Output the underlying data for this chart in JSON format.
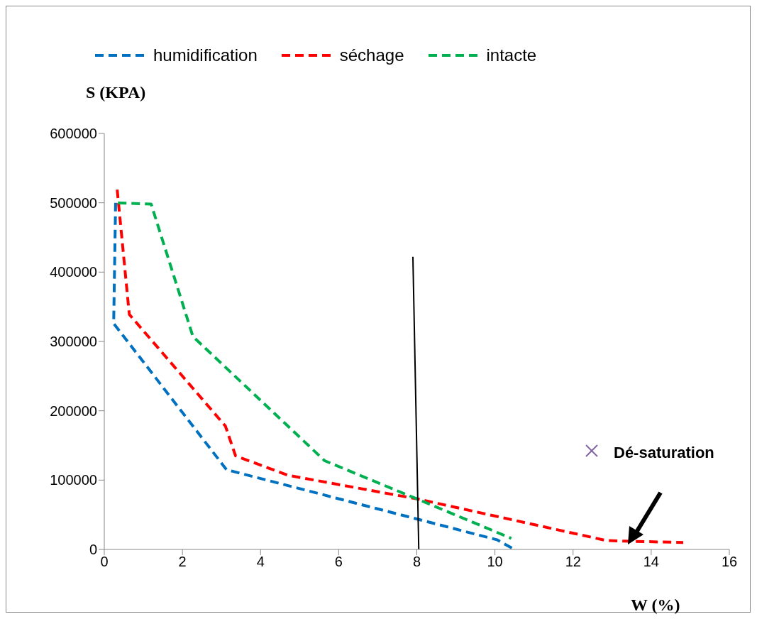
{
  "chart_data": {
    "type": "line",
    "xlabel": "W (%)",
    "ylabel": "S (KPA)",
    "xlim": [
      0,
      16
    ],
    "xticks": [
      0,
      2,
      4,
      6,
      8,
      10,
      12,
      14,
      16
    ],
    "ylim": [
      0,
      600000
    ],
    "yticks": [
      0,
      100000,
      200000,
      300000,
      400000,
      500000,
      600000
    ],
    "grid": false,
    "legend": "top",
    "marker": "none",
    "line_style": "dashed",
    "annotations": [
      "Dé-saturation"
    ],
    "series": [
      {
        "name": "humidification",
        "color": "#0070c0",
        "x": [
          0.29,
          0.24,
          3.13,
          10.05,
          10.5
        ],
        "values": [
          500000,
          326000,
          115000,
          14000,
          0
        ]
      },
      {
        "name": "séchage",
        "color": "#ff0000",
        "x": [
          0.33,
          0.64,
          3.1,
          3.36,
          4.7,
          8,
          12.84,
          13.3,
          14.82
        ],
        "values": [
          519000,
          339000,
          178000,
          135000,
          107000,
          73000,
          13000,
          12000,
          10000
        ]
      },
      {
        "name": "intacte",
        "color": "#00b050",
        "x": [
          0.35,
          1.2,
          2.27,
          5.64,
          8,
          10.42
        ],
        "values": [
          500000,
          498000,
          307000,
          128000,
          73000,
          16000
        ]
      },
      {
        "color": "#000000",
        "line_style": "solid",
        "x": [
          8.05,
          7.9
        ],
        "values": [
          0,
          422000
        ]
      }
    ]
  }
}
